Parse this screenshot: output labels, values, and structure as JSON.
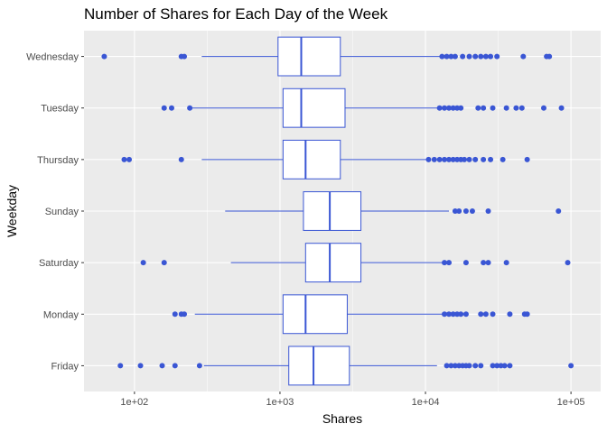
{
  "chart_data": {
    "type": "boxplot",
    "orientation": "horizontal",
    "title": "Number of Shares for Each Day of the Week",
    "xlabel": "Shares",
    "ylabel": "Weekday",
    "x_scale": "log10",
    "xlim": [
      45,
      160000
    ],
    "x_ticks": [
      {
        "value": 100,
        "label": "1e+02"
      },
      {
        "value": 1000,
        "label": "1e+03"
      },
      {
        "value": 10000,
        "label": "1e+04"
      },
      {
        "value": 100000,
        "label": "1e+05"
      }
    ],
    "grid": true,
    "legend": "none",
    "colors": {
      "panel_bg": "#ebebeb",
      "grid_major": "#ffffff",
      "box_stroke": "#3a56d4",
      "box_fill": "#ffffff",
      "outlier": "#3a56d4"
    },
    "series": [
      {
        "category": "Wednesday",
        "whisker_low": 290,
        "q1": 970,
        "median": 1400,
        "q3": 2600,
        "whisker_high": 13000,
        "outliers": [
          62,
          210,
          220,
          13000,
          14000,
          15000,
          16000,
          18000,
          20000,
          22000,
          24000,
          26000,
          28000,
          31000,
          47000,
          68000,
          71000
        ]
      },
      {
        "category": "Tuesday",
        "whisker_low": 240,
        "q1": 1050,
        "median": 1400,
        "q3": 2800,
        "whisker_high": 12500,
        "outliers": [
          160,
          180,
          240,
          12500,
          13500,
          14500,
          15500,
          16500,
          17500,
          23000,
          25000,
          29000,
          36000,
          42000,
          46000,
          65000,
          86000
        ]
      },
      {
        "category": "Thursday",
        "whisker_low": 290,
        "q1": 1050,
        "median": 1500,
        "q3": 2600,
        "whisker_high": 10500,
        "outliers": [
          85,
          92,
          210,
          10500,
          11500,
          12500,
          13500,
          14500,
          15500,
          16500,
          17500,
          18500,
          20000,
          22000,
          25000,
          28000,
          34000,
          50000
        ]
      },
      {
        "category": "Sunday",
        "whisker_low": 420,
        "q1": 1450,
        "median": 2200,
        "q3": 3600,
        "whisker_high": 14500,
        "outliers": [
          16000,
          17000,
          19000,
          21000,
          27000,
          82000
        ]
      },
      {
        "category": "Saturday",
        "whisker_low": 460,
        "q1": 1500,
        "median": 2200,
        "q3": 3600,
        "whisker_high": 13000,
        "outliers": [
          115,
          160,
          13500,
          14500,
          19000,
          25000,
          27000,
          36000,
          95000
        ]
      },
      {
        "category": "Monday",
        "whisker_low": 260,
        "q1": 1050,
        "median": 1500,
        "q3": 2900,
        "whisker_high": 13000,
        "outliers": [
          190,
          210,
          220,
          13500,
          14500,
          15500,
          16500,
          17500,
          19000,
          24000,
          26000,
          29000,
          38000,
          48000,
          50000
        ]
      },
      {
        "category": "Friday",
        "whisker_low": 300,
        "q1": 1150,
        "median": 1700,
        "q3": 3000,
        "whisker_high": 12000,
        "outliers": [
          80,
          110,
          155,
          190,
          280,
          14000,
          15000,
          16000,
          17000,
          18000,
          19000,
          20000,
          22000,
          24000,
          29000,
          31000,
          33000,
          35000,
          38000,
          100000
        ]
      }
    ]
  }
}
